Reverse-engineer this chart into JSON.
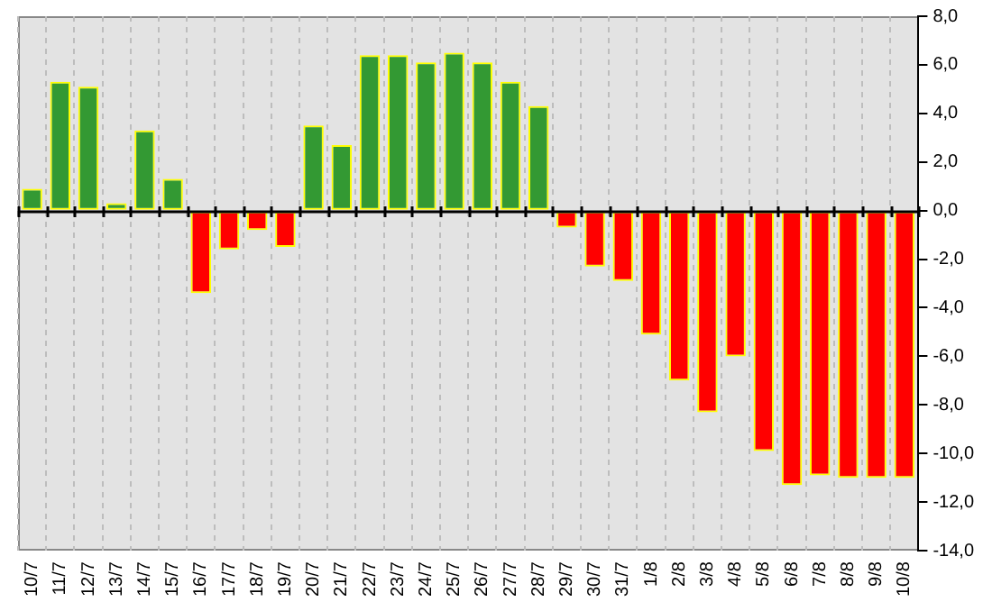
{
  "chart_data": {
    "type": "bar",
    "categories": [
      "10/7",
      "11/7",
      "12/7",
      "13/7",
      "14/7",
      "15/7",
      "16/7",
      "17/7",
      "18/7",
      "19/7",
      "20/7",
      "21/7",
      "22/7",
      "23/7",
      "24/7",
      "25/7",
      "26/7",
      "27/7",
      "28/7",
      "29/7",
      "30/7",
      "31/7",
      "1/8",
      "2/8",
      "3/8",
      "4/8",
      "5/8",
      "6/8",
      "7/8",
      "8/8",
      "9/8",
      "10/8"
    ],
    "values": [
      0.9,
      5.3,
      5.1,
      0.3,
      3.3,
      1.3,
      -3.4,
      -1.6,
      -0.8,
      -1.5,
      3.5,
      2.7,
      6.4,
      6.4,
      6.1,
      6.5,
      6.1,
      5.3,
      4.3,
      -0.7,
      -2.3,
      -2.9,
      -5.1,
      -7.0,
      -8.3,
      -6.0,
      -9.9,
      -11.3,
      -10.9,
      -11.0,
      -11.0,
      -11.0
    ],
    "colors": [
      "#339933",
      "#339933",
      "#339933",
      "#339933",
      "#339933",
      "#339933",
      "#ff0000",
      "#ff0000",
      "#ff0000",
      "#ff0000",
      "#339933",
      "#339933",
      "#339933",
      "#339933",
      "#339933",
      "#339933",
      "#339933",
      "#339933",
      "#339933",
      "#ff0000",
      "#ff0000",
      "#ff0000",
      "#ff0000",
      "#ff0000",
      "#ff0000",
      "#ff0000",
      "#ff0000",
      "#ff0000",
      "#ff0000",
      "#ff0000",
      "#ff0000",
      "#ff0000"
    ],
    "ylim": [
      -14,
      8
    ],
    "yticks": [
      {
        "value": 8,
        "label": "8,0"
      },
      {
        "value": 6,
        "label": "6,0"
      },
      {
        "value": 4,
        "label": "4,0"
      },
      {
        "value": 2,
        "label": "2,0"
      },
      {
        "value": 0,
        "label": "0,0"
      },
      {
        "value": -2,
        "label": "-2,0"
      },
      {
        "value": -4,
        "label": "-4,0"
      },
      {
        "value": -6,
        "label": "-6,0"
      },
      {
        "value": -8,
        "label": "-8,0"
      },
      {
        "value": -10,
        "label": "-10,0"
      },
      {
        "value": -12,
        "label": "-12,0"
      },
      {
        "value": -14,
        "label": "-14,0"
      }
    ],
    "grid": "x",
    "legend": false
  }
}
